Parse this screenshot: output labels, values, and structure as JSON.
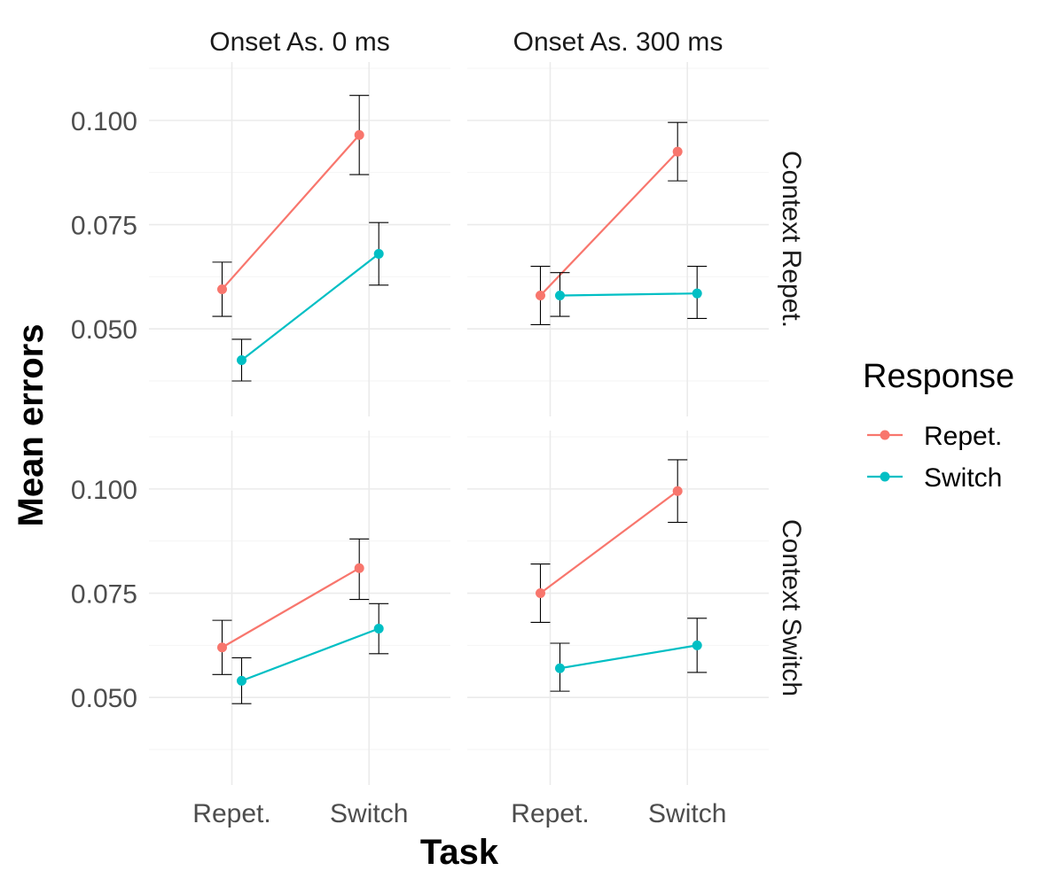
{
  "chart_data": {
    "type": "line",
    "xlabel": "Task",
    "ylabel": "Mean errors",
    "ylim": [
      0.029,
      0.114
    ],
    "yticks": [
      0.05,
      0.075,
      0.1
    ],
    "ytick_labels": [
      "0.050",
      "0.075",
      "0.100"
    ],
    "categories": [
      "Repet.",
      "Switch"
    ],
    "grid": true,
    "legend": {
      "title": "Response",
      "position": "right",
      "entries": [
        {
          "name": "Repet.",
          "color": "#F8766D"
        },
        {
          "name": "Switch",
          "color": "#00BFC4"
        }
      ]
    },
    "facet_columns": [
      "Onset As. 0 ms",
      "Onset As. 300 ms"
    ],
    "facet_rows": [
      "Context Repet.",
      "Context Switch"
    ],
    "panels": [
      {
        "col": 0,
        "row": 0,
        "series": [
          {
            "name": "Repet.",
            "values": [
              0.0595,
              0.0965
            ],
            "lower": [
              0.053,
              0.087
            ],
            "upper": [
              0.066,
              0.106
            ]
          },
          {
            "name": "Switch",
            "values": [
              0.0425,
              0.068
            ],
            "lower": [
              0.0375,
              0.0605
            ],
            "upper": [
              0.0475,
              0.0755
            ]
          }
        ]
      },
      {
        "col": 1,
        "row": 0,
        "series": [
          {
            "name": "Repet.",
            "values": [
              0.058,
              0.0925
            ],
            "lower": [
              0.051,
              0.0855
            ],
            "upper": [
              0.065,
              0.0995
            ]
          },
          {
            "name": "Switch",
            "values": [
              0.058,
              0.0585
            ],
            "lower": [
              0.053,
              0.0525
            ],
            "upper": [
              0.0635,
              0.065
            ]
          }
        ]
      },
      {
        "col": 0,
        "row": 1,
        "series": [
          {
            "name": "Repet.",
            "values": [
              0.062,
              0.081
            ],
            "lower": [
              0.0555,
              0.0735
            ],
            "upper": [
              0.0685,
              0.088
            ]
          },
          {
            "name": "Switch",
            "values": [
              0.054,
              0.0665
            ],
            "lower": [
              0.0485,
              0.0605
            ],
            "upper": [
              0.0595,
              0.0725
            ]
          }
        ]
      },
      {
        "col": 1,
        "row": 1,
        "series": [
          {
            "name": "Repet.",
            "values": [
              0.075,
              0.0995
            ],
            "lower": [
              0.068,
              0.092
            ],
            "upper": [
              0.082,
              0.107
            ]
          },
          {
            "name": "Switch",
            "values": [
              0.057,
              0.0625
            ],
            "lower": [
              0.0515,
              0.056
            ],
            "upper": [
              0.063,
              0.069
            ]
          }
        ]
      }
    ]
  }
}
